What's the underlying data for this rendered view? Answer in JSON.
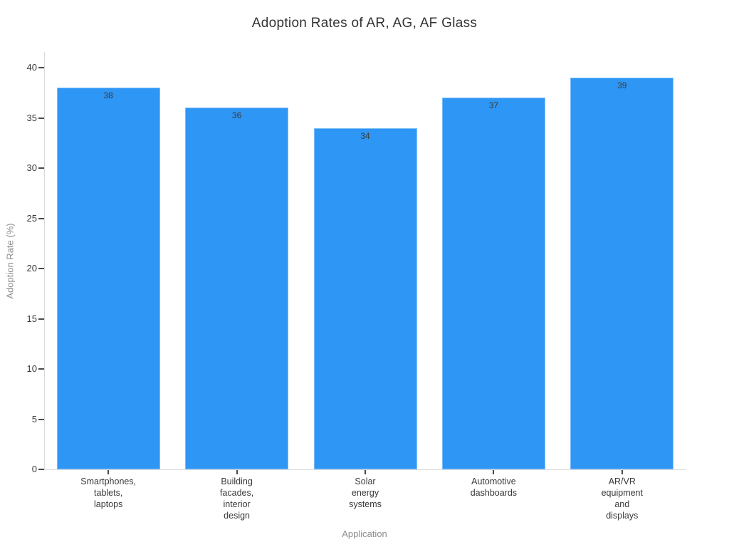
{
  "chart_data": {
    "type": "bar",
    "title": "Adoption Rates of AR, AG, AF Glass",
    "categories": [
      "Smartphones,\ntablets,\nlaptops",
      "Building\nfacades,\ninterior\ndesign",
      "Solar\nenergy\nsystems",
      "Automotive\ndashboards",
      "AR/VR\nequipment\nand\ndisplays"
    ],
    "values": [
      38,
      36,
      34,
      37,
      39
    ],
    "value_labels": [
      "38",
      "36",
      "34",
      "37",
      "39"
    ],
    "xlabel": "Application",
    "ylabel": "Adoption Rate (%)",
    "ylim": [
      0,
      40
    ],
    "yticks": [
      0,
      5,
      10,
      15,
      20,
      25,
      30,
      35,
      40
    ],
    "grid": false,
    "legend": false,
    "bar_color": "#2e96f5",
    "spine_color": "#d9d9d9",
    "tick_color": "#4a4a4a",
    "text_color": "#3a3a3a",
    "axis_title_color": "#8c8c8c"
  }
}
